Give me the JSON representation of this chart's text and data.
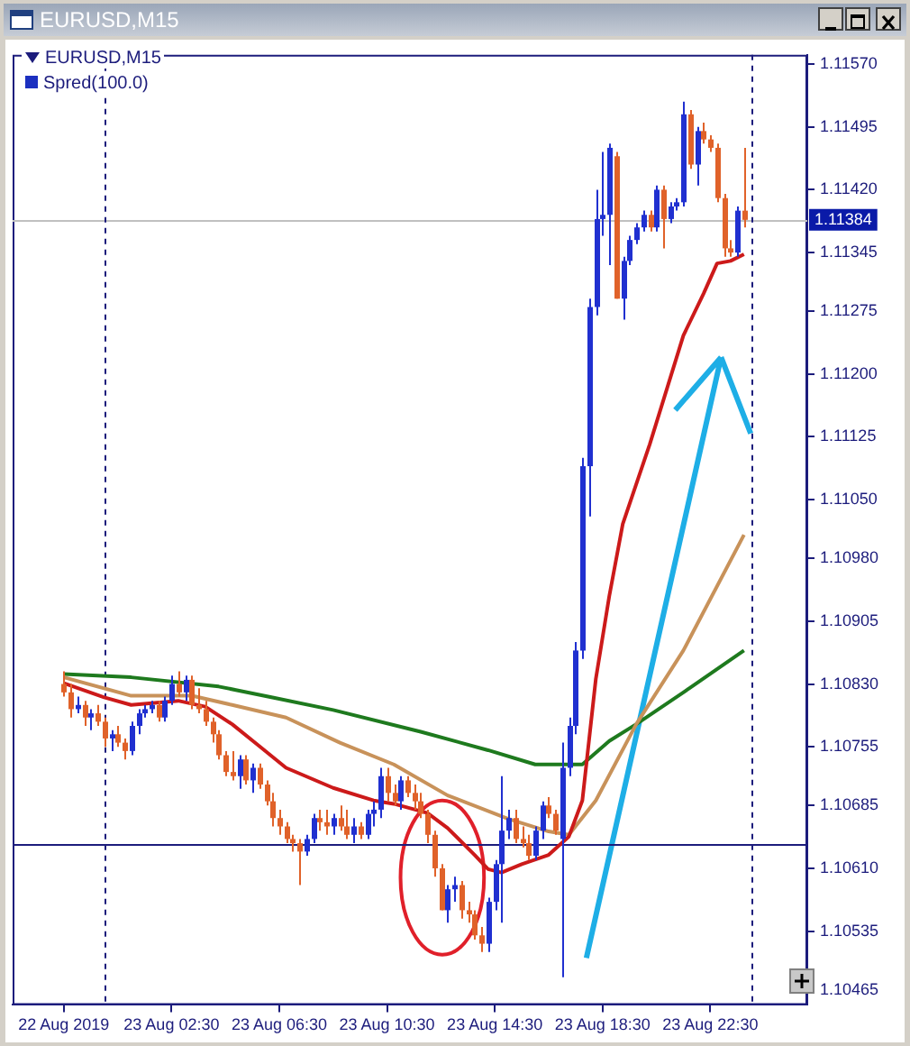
{
  "chart_data": {
    "type": "candlestick",
    "title": "EURUSD,M15",
    "subtitle": "Spred(100.0)",
    "x": [
      "2019-08-22T22:30",
      "2019-08-22T22:45",
      "2019-08-22T23:00",
      "2019-08-22T23:15",
      "2019-08-22T23:30",
      "2019-08-22T23:45",
      "2019-08-23T00:00",
      "2019-08-23T00:15",
      "2019-08-23T00:30",
      "2019-08-23T00:45",
      "2019-08-23T01:00",
      "2019-08-23T01:15",
      "2019-08-23T01:30",
      "2019-08-23T01:45",
      "2019-08-23T02:00",
      "2019-08-23T02:15",
      "2019-08-23T02:30",
      "2019-08-23T02:45",
      "2019-08-23T03:00",
      "2019-08-23T03:15",
      "2019-08-23T03:30",
      "2019-08-23T03:45",
      "2019-08-23T04:00",
      "2019-08-23T04:15",
      "2019-08-23T04:30",
      "2019-08-23T04:45",
      "2019-08-23T05:00",
      "2019-08-23T05:15",
      "2019-08-23T05:30",
      "2019-08-23T05:45",
      "2019-08-23T06:00",
      "2019-08-23T06:15",
      "2019-08-23T06:30",
      "2019-08-23T06:45",
      "2019-08-23T07:00",
      "2019-08-23T07:15",
      "2019-08-23T07:30",
      "2019-08-23T07:45",
      "2019-08-23T08:00",
      "2019-08-23T08:15",
      "2019-08-23T08:30",
      "2019-08-23T08:45",
      "2019-08-23T09:00",
      "2019-08-23T09:15",
      "2019-08-23T09:30",
      "2019-08-23T09:45",
      "2019-08-23T10:00",
      "2019-08-23T10:15",
      "2019-08-23T10:30",
      "2019-08-23T10:45",
      "2019-08-23T11:00",
      "2019-08-23T11:15",
      "2019-08-23T11:30",
      "2019-08-23T11:45",
      "2019-08-23T12:00",
      "2019-08-23T12:15",
      "2019-08-23T12:30",
      "2019-08-23T12:45",
      "2019-08-23T13:00",
      "2019-08-23T13:15",
      "2019-08-23T13:30",
      "2019-08-23T13:45",
      "2019-08-23T14:00",
      "2019-08-23T14:15",
      "2019-08-23T14:30",
      "2019-08-23T14:45",
      "2019-08-23T15:00",
      "2019-08-23T15:15",
      "2019-08-23T15:30",
      "2019-08-23T15:45",
      "2019-08-23T16:00",
      "2019-08-23T16:15",
      "2019-08-23T16:30",
      "2019-08-23T16:45",
      "2019-08-23T17:00",
      "2019-08-23T17:15",
      "2019-08-23T17:30",
      "2019-08-23T17:45",
      "2019-08-23T18:00",
      "2019-08-23T18:15",
      "2019-08-23T18:30",
      "2019-08-23T18:45",
      "2019-08-23T19:00",
      "2019-08-23T19:15",
      "2019-08-23T19:30",
      "2019-08-23T19:45",
      "2019-08-23T20:00",
      "2019-08-23T20:15",
      "2019-08-23T20:30",
      "2019-08-23T20:45",
      "2019-08-23T21:00",
      "2019-08-23T21:15",
      "2019-08-23T21:30",
      "2019-08-23T21:45",
      "2019-08-23T22:00",
      "2019-08-23T22:15",
      "2019-08-23T22:30",
      "2019-08-23T22:45",
      "2019-08-23T23:00",
      "2019-08-23T23:15",
      "2019-08-23T23:30",
      "2019-08-23T23:45"
    ],
    "ohlc": [
      [
        1.1083,
        1.10845,
        1.10815,
        1.1082
      ],
      [
        1.1082,
        1.1083,
        1.1079,
        1.108
      ],
      [
        1.108,
        1.10815,
        1.10795,
        1.10805
      ],
      [
        1.10805,
        1.1081,
        1.1078,
        1.1079
      ],
      [
        1.1079,
        1.108,
        1.10775,
        1.10795
      ],
      [
        1.10795,
        1.10805,
        1.1078,
        1.10785
      ],
      [
        1.10785,
        1.1079,
        1.10755,
        1.10765
      ],
      [
        1.10765,
        1.10775,
        1.1075,
        1.1077
      ],
      [
        1.1077,
        1.1078,
        1.10755,
        1.1076
      ],
      [
        1.1076,
        1.10765,
        1.1074,
        1.1075
      ],
      [
        1.1075,
        1.10785,
        1.10745,
        1.1078
      ],
      [
        1.1078,
        1.108,
        1.1077,
        1.10795
      ],
      [
        1.10795,
        1.10805,
        1.1079,
        1.108
      ],
      [
        1.108,
        1.1081,
        1.10795,
        1.10805
      ],
      [
        1.10805,
        1.1081,
        1.10785,
        1.1079
      ],
      [
        1.1079,
        1.10815,
        1.10785,
        1.1081
      ],
      [
        1.1081,
        1.1084,
        1.10805,
        1.1083
      ],
      [
        1.1083,
        1.10845,
        1.10815,
        1.1082
      ],
      [
        1.1082,
        1.1084,
        1.1081,
        1.10835
      ],
      [
        1.10835,
        1.1084,
        1.108,
        1.10805
      ],
      [
        1.10805,
        1.10825,
        1.10795,
        1.108
      ],
      [
        1.108,
        1.1081,
        1.1078,
        1.10785
      ],
      [
        1.10785,
        1.1079,
        1.1076,
        1.1077
      ],
      [
        1.1077,
        1.10775,
        1.1074,
        1.10745
      ],
      [
        1.10745,
        1.1075,
        1.1072,
        1.10725
      ],
      [
        1.10725,
        1.1075,
        1.10715,
        1.1072
      ],
      [
        1.1072,
        1.10745,
        1.10705,
        1.1074
      ],
      [
        1.1074,
        1.10745,
        1.1071,
        1.10715
      ],
      [
        1.10715,
        1.10735,
        1.107,
        1.1073
      ],
      [
        1.1073,
        1.10735,
        1.10705,
        1.1071
      ],
      [
        1.1071,
        1.10715,
        1.10685,
        1.1069
      ],
      [
        1.1069,
        1.107,
        1.1066,
        1.1067
      ],
      [
        1.1067,
        1.1068,
        1.1065,
        1.1066
      ],
      [
        1.1066,
        1.10665,
        1.1064,
        1.10645
      ],
      [
        1.10645,
        1.1065,
        1.1063,
        1.1064
      ],
      [
        1.1064,
        1.10645,
        1.1059,
        1.1063
      ],
      [
        1.1063,
        1.1065,
        1.10625,
        1.10645
      ],
      [
        1.10645,
        1.10675,
        1.1064,
        1.1067
      ],
      [
        1.1067,
        1.1068,
        1.10655,
        1.10665
      ],
      [
        1.10665,
        1.1068,
        1.1065,
        1.1066
      ],
      [
        1.1066,
        1.10675,
        1.1065,
        1.1067
      ],
      [
        1.1067,
        1.10685,
        1.10655,
        1.1066
      ],
      [
        1.1066,
        1.1068,
        1.10645,
        1.1065
      ],
      [
        1.1065,
        1.1067,
        1.1064,
        1.1066
      ],
      [
        1.1066,
        1.10665,
        1.10645,
        1.1065
      ],
      [
        1.1065,
        1.1068,
        1.10645,
        1.10675
      ],
      [
        1.10675,
        1.1069,
        1.1066,
        1.1068
      ],
      [
        1.1068,
        1.1073,
        1.1067,
        1.1072
      ],
      [
        1.1072,
        1.1073,
        1.1069,
        1.107
      ],
      [
        1.107,
        1.1071,
        1.10685,
        1.1069
      ],
      [
        1.1069,
        1.1072,
        1.1068,
        1.10715
      ],
      [
        1.10715,
        1.1072,
        1.10695,
        1.107
      ],
      [
        1.107,
        1.1071,
        1.1068,
        1.1069
      ],
      [
        1.1069,
        1.107,
        1.1067,
        1.10675
      ],
      [
        1.10675,
        1.1068,
        1.1064,
        1.1065
      ],
      [
        1.1065,
        1.10655,
        1.106,
        1.1061
      ],
      [
        1.1061,
        1.10615,
        1.1056,
        1.1056
      ],
      [
        1.1056,
        1.1059,
        1.10545,
        1.10585
      ],
      [
        1.10585,
        1.106,
        1.1057,
        1.1059
      ],
      [
        1.1059,
        1.10595,
        1.1055,
        1.1056
      ],
      [
        1.1056,
        1.1057,
        1.10545,
        1.10555
      ],
      [
        1.10555,
        1.1056,
        1.10525,
        1.1053
      ],
      [
        1.1053,
        1.1054,
        1.1051,
        1.1052
      ],
      [
        1.1052,
        1.10575,
        1.1051,
        1.1057
      ],
      [
        1.1057,
        1.1062,
        1.1056,
        1.10615
      ],
      [
        1.10615,
        1.1072,
        1.10545,
        1.10655
      ],
      [
        1.10655,
        1.1068,
        1.10645,
        1.1067
      ],
      [
        1.1067,
        1.1068,
        1.1064,
        1.10645
      ],
      [
        1.10645,
        1.1066,
        1.10635,
        1.1064
      ],
      [
        1.1064,
        1.1065,
        1.1062,
        1.10625
      ],
      [
        1.10625,
        1.1066,
        1.1062,
        1.10655
      ],
      [
        1.10655,
        1.1069,
        1.10645,
        1.10685
      ],
      [
        1.10685,
        1.10695,
        1.1067,
        1.10675
      ],
      [
        1.10675,
        1.1068,
        1.1065,
        1.10655
      ],
      [
        1.10645,
        1.1076,
        1.1048,
        1.1073
      ],
      [
        1.1073,
        1.1079,
        1.1072,
        1.1078
      ],
      [
        1.1078,
        1.1088,
        1.1077,
        1.1087
      ],
      [
        1.1087,
        1.111,
        1.1086,
        1.1109
      ],
      [
        1.1109,
        1.1129,
        1.1103,
        1.1128
      ],
      [
        1.1128,
        1.1142,
        1.1127,
        1.11385
      ],
      [
        1.11385,
        1.11465,
        1.11365,
        1.1139
      ],
      [
        1.1139,
        1.11475,
        1.1133,
        1.1147
      ],
      [
        1.1146,
        1.11465,
        1.1129,
        1.1129
      ],
      [
        1.1129,
        1.1134,
        1.11265,
        1.11335
      ],
      [
        1.11335,
        1.11365,
        1.1133,
        1.1136
      ],
      [
        1.1136,
        1.1138,
        1.11355,
        1.11375
      ],
      [
        1.11375,
        1.11395,
        1.1137,
        1.1139
      ],
      [
        1.1139,
        1.11395,
        1.1137,
        1.11375
      ],
      [
        1.11375,
        1.11425,
        1.1137,
        1.1142
      ],
      [
        1.1142,
        1.11425,
        1.1135,
        1.11385
      ],
      [
        1.11385,
        1.11405,
        1.1138,
        1.114
      ],
      [
        1.114,
        1.1141,
        1.11395,
        1.11405
      ],
      [
        1.11405,
        1.11525,
        1.114,
        1.1151
      ],
      [
        1.1151,
        1.11515,
        1.11445,
        1.1145
      ],
      [
        1.1145,
        1.11495,
        1.11425,
        1.1149
      ],
      [
        1.1149,
        1.115,
        1.11475,
        1.1148
      ],
      [
        1.1148,
        1.11485,
        1.11465,
        1.1147
      ],
      [
        1.1147,
        1.11475,
        1.11405,
        1.1141
      ],
      [
        1.1141,
        1.11415,
        1.1134,
        1.1135
      ],
      [
        1.1135,
        1.1136,
        1.1134,
        1.11345
      ],
      [
        1.11345,
        1.114,
        1.1134,
        1.11395
      ],
      [
        1.11395,
        1.1147,
        1.11375,
        1.11384
      ]
    ],
    "colors": [
      "#e0622a",
      "#e0622a",
      "#2030d0",
      "#e0622a",
      "#2030d0",
      "#e0622a",
      "#e0622a",
      "#2030d0",
      "#e0622a",
      "#e0622a",
      "#2030d0",
      "#2030d0",
      "#2030d0",
      "#2030d0",
      "#e0622a",
      "#2030d0",
      "#2030d0",
      "#e0622a",
      "#2030d0",
      "#e0622a",
      "#e0622a",
      "#e0622a",
      "#e0622a",
      "#e0622a",
      "#e0622a",
      "#e0622a",
      "#2030d0",
      "#e0622a",
      "#2030d0",
      "#e0622a",
      "#e0622a",
      "#e0622a",
      "#e0622a",
      "#e0622a",
      "#e0622a",
      "#e0622a",
      "#2030d0",
      "#2030d0",
      "#e0622a",
      "#e0622a",
      "#2030d0",
      "#e0622a",
      "#e0622a",
      "#2030d0",
      "#e0622a",
      "#2030d0",
      "#2030d0",
      "#2030d0",
      "#e0622a",
      "#e0622a",
      "#2030d0",
      "#e0622a",
      "#e0622a",
      "#e0622a",
      "#e0622a",
      "#e0622a",
      "#e0622a",
      "#2030d0",
      "#2030d0",
      "#e0622a",
      "#e0622a",
      "#e0622a",
      "#e0622a",
      "#2030d0",
      "#2030d0",
      "#2030d0",
      "#2030d0",
      "#e0622a",
      "#e0622a",
      "#e0622a",
      "#2030d0",
      "#2030d0",
      "#e0622a",
      "#e0622a",
      "#2030d0",
      "#2030d0",
      "#2030d0",
      "#2030d0",
      "#2030d0",
      "#2030d0",
      "#2030d0",
      "#2030d0",
      "#e0622a",
      "#2030d0",
      "#2030d0",
      "#2030d0",
      "#2030d0",
      "#e0622a",
      "#2030d0",
      "#e0622a",
      "#2030d0",
      "#2030d0",
      "#2030d0",
      "#e0622a",
      "#2030d0",
      "#e0622a",
      "#e0622a",
      "#e0622a",
      "#e0622a",
      "#e0622a",
      "#2030d0",
      "#e0622a"
    ],
    "series": [
      {
        "type": "line",
        "color": "#cc1a1a",
        "x": [
          "2019-08-22T22:30",
          "2019-08-23T00:00",
          "2019-08-23T01:00",
          "2019-08-23T02:45",
          "2019-08-23T03:45",
          "2019-08-23T04:45",
          "2019-08-23T05:45",
          "2019-08-23T06:45",
          "2019-08-23T08:30",
          "2019-08-23T10:00",
          "2019-08-23T10:45",
          "2019-08-23T12:00",
          "2019-08-23T12:45",
          "2019-08-23T13:45",
          "2019-08-23T14:15",
          "2019-08-23T14:45",
          "2019-08-23T15:30",
          "2019-08-23T16:30",
          "2019-08-23T17:15",
          "2019-08-23T17:45",
          "2019-08-23T18:15",
          "2019-08-23T18:45",
          "2019-08-23T19:15",
          "2019-08-23T20:15",
          "2019-08-23T21:30",
          "2019-08-23T22:15",
          "2019-08-23T22:45",
          "2019-08-23T23:15",
          "2019-08-23T23:45"
        ],
        "values": [
          1.10831,
          1.10814,
          1.10805,
          1.1081,
          1.10803,
          1.10782,
          1.10756,
          1.1073,
          1.10706,
          1.10691,
          1.10687,
          1.10676,
          1.10658,
          1.10626,
          1.10609,
          1.10605,
          1.10615,
          1.10626,
          1.10648,
          1.10691,
          1.10836,
          1.10935,
          1.11021,
          1.11116,
          1.11246,
          1.11296,
          1.11332,
          1.11335,
          1.11343
        ]
      },
      {
        "type": "line",
        "color": "#c8925a",
        "x": [
          "2019-08-22T22:30",
          "2019-08-23T01:00",
          "2019-08-23T03:15",
          "2019-08-23T04:45",
          "2019-08-23T06:45",
          "2019-08-23T08:45",
          "2019-08-23T10:45",
          "2019-08-23T12:45",
          "2019-08-23T15:00",
          "2019-08-23T16:30",
          "2019-08-23T17:15",
          "2019-08-23T18:15",
          "2019-08-23T19:45",
          "2019-08-23T21:30",
          "2019-08-23T23:45"
        ],
        "values": [
          1.10838,
          1.10816,
          1.10816,
          1.10805,
          1.1079,
          1.1076,
          1.10734,
          1.10697,
          1.10669,
          1.10654,
          1.1065,
          1.10691,
          1.10782,
          1.1087,
          1.11008
        ]
      },
      {
        "type": "line",
        "color": "#1e7a1e",
        "x": [
          "2019-08-22T22:30",
          "2019-08-23T01:00",
          "2019-08-23T04:15",
          "2019-08-23T06:15",
          "2019-08-23T08:30",
          "2019-08-23T11:45",
          "2019-08-23T14:15",
          "2019-08-23T16:00",
          "2019-08-23T17:45",
          "2019-08-23T18:45",
          "2019-08-23T19:45",
          "2019-08-23T21:30",
          "2019-08-23T23:45"
        ],
        "values": [
          1.10842,
          1.10838,
          1.10827,
          1.10814,
          1.10799,
          1.10773,
          1.10751,
          1.10734,
          1.10734,
          1.10762,
          1.10782,
          1.1082,
          1.1087
        ]
      }
    ],
    "marker": "none",
    "xlim": [
      "2019-08-22T20:36",
      "2019-08-24T02:06"
    ],
    "xticks": [
      {
        "value": "2019-08-22T22:30",
        "label": "22 Aug 2019"
      },
      {
        "value": "2019-08-23T02:30",
        "label": "23 Aug 02:30"
      },
      {
        "value": "2019-08-23T06:30",
        "label": "23 Aug 06:30"
      },
      {
        "value": "2019-08-23T10:30",
        "label": "23 Aug 10:30"
      },
      {
        "value": "2019-08-23T14:30",
        "label": "23 Aug 14:30"
      },
      {
        "value": "2019-08-23T18:30",
        "label": "23 Aug 18:30"
      },
      {
        "value": "2019-08-23T22:30",
        "label": "23 Aug 22:30"
      }
    ],
    "ylim": [
      1.10447,
      1.11581
    ],
    "yticks": [
      {
        "value": 1.1157,
        "label": "1.11570"
      },
      {
        "value": 1.11495,
        "label": "1.11495"
      },
      {
        "value": 1.1142,
        "label": "1.11420"
      },
      {
        "value": 1.11345,
        "label": "1.11345"
      },
      {
        "value": 1.11275,
        "label": "1.11275"
      },
      {
        "value": 1.112,
        "label": "1.11200"
      },
      {
        "value": 1.11125,
        "label": "1.11125"
      },
      {
        "value": 1.1105,
        "label": "1.11050"
      },
      {
        "value": 1.1098,
        "label": "1.10980"
      },
      {
        "value": 1.10905,
        "label": "1.10905"
      },
      {
        "value": 1.1083,
        "label": "1.10830"
      },
      {
        "value": 1.10755,
        "label": "1.10755"
      },
      {
        "value": 1.10685,
        "label": "1.10685"
      },
      {
        "value": 1.1061,
        "label": "1.10610"
      },
      {
        "value": 1.10535,
        "label": "1.10535"
      },
      {
        "value": 1.10465,
        "label": "1.10465"
      }
    ],
    "ref_lines": [
      {
        "axis": "y",
        "value": 1.11384,
        "label": "1.11384",
        "color": "#c0c0c0"
      },
      {
        "axis": "y",
        "value": 1.1064,
        "color": "#1c1c7c"
      },
      {
        "axis": "x",
        "value": "2019-08-23T00:00",
        "color": "#1c1c7c",
        "line_style": "dashed"
      },
      {
        "axis": "x",
        "value": "2019-08-24T00:00",
        "color": "#1c1c7c",
        "line_style": "dashed"
      }
    ]
  }
}
